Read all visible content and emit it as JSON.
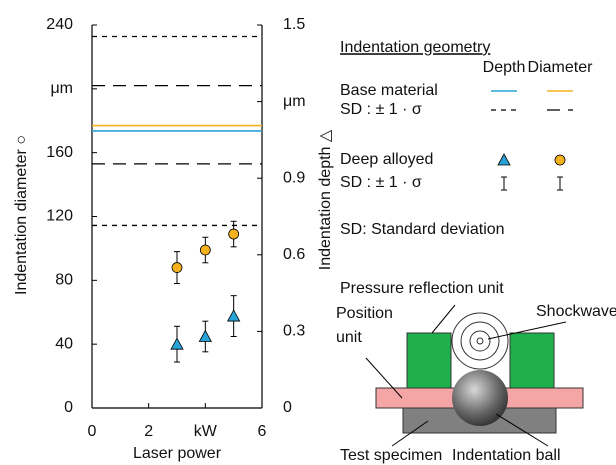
{
  "chart_data": {
    "type": "scatter",
    "xlabel": "Laser power",
    "ylabel": "Indentation diameter ○",
    "y2label": "Indentation depth △",
    "xlim": [
      0,
      6
    ],
    "xticks": [
      0,
      2,
      {
        "value": 4,
        "label": "kW"
      },
      6
    ],
    "ylim": [
      0,
      240
    ],
    "yticks": [
      0,
      40,
      80,
      120,
      160,
      {
        "value": 200,
        "label": "μm"
      },
      240
    ],
    "y2lim": [
      0,
      1.5
    ],
    "y2ticks": [
      0,
      0.3,
      0.6,
      0.9,
      {
        "value": 1.2,
        "label": "μm"
      },
      1.5
    ],
    "series": [
      {
        "name": "Depth",
        "marker": "triangle",
        "color": "#29a3d6",
        "axis": "y2",
        "x": [
          3,
          4,
          5
        ],
        "values": [
          0.25,
          0.28,
          0.36
        ],
        "errors": [
          0.07,
          0.06,
          0.08
        ],
        "base": 1.085,
        "sd_lines": [
          1.455,
          0.715
        ]
      },
      {
        "name": "Diameter",
        "marker": "circle",
        "color": "#f5b21c",
        "x": [
          3,
          4,
          5
        ],
        "values": [
          88,
          99,
          109
        ],
        "errors": [
          10,
          8,
          8
        ],
        "base": 177,
        "sd_lines": [
          202,
          153
        ]
      }
    ],
    "legend": {
      "title": "Indentation geometry",
      "rows": [
        "Base material",
        "SD : ± 1 · σ",
        "Deep alloyed",
        "SD : ± 1 · σ"
      ],
      "note": "SD: Standard deviation"
    }
  },
  "diagram": {
    "pressure_reflection_unit": "Pressure reflection unit",
    "shockwave": "Shockwave",
    "position_unit": [
      "Position",
      "unit"
    ],
    "test_specimen": "Test specimen",
    "indentation_ball": "Indentation ball"
  }
}
